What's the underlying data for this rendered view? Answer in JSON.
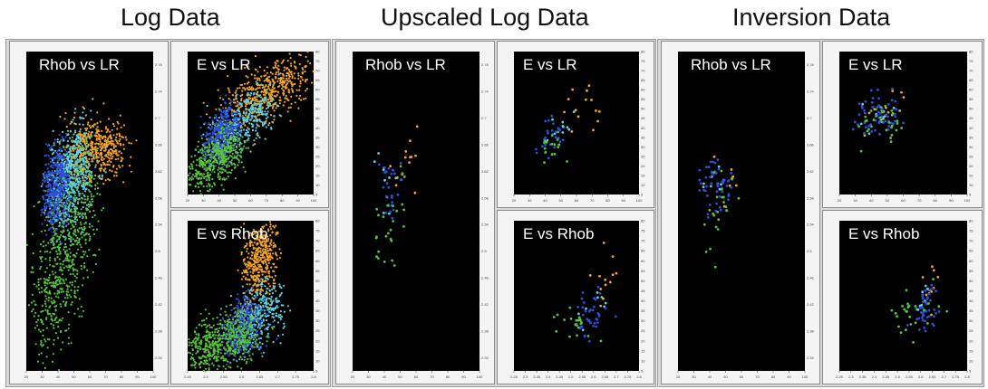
{
  "sections": [
    {
      "title": "Log Data"
    },
    {
      "title": "Upscaled Log Data"
    },
    {
      "title": "Inversion Data"
    }
  ],
  "palette": {
    "plot_bg": "#000000",
    "orange": "#f5a623",
    "cyan": "#5fd3e6",
    "blue": "#2f4fd6",
    "green": "#58c43a",
    "panel_frame": "#f4f4f4"
  },
  "chart_data": [
    {
      "id": "log-rhob-lr",
      "type": "scatter",
      "label": "Rhob vs LR",
      "xlim": [
        20,
        100
      ],
      "ylim": [
        2.32,
        2.8
      ],
      "xticks": [
        20,
        30,
        40,
        50,
        60,
        70,
        80,
        90,
        100
      ],
      "yticks": [
        2.34,
        2.38,
        2.42,
        2.46,
        2.5,
        2.54,
        2.58,
        2.62,
        2.66,
        2.7,
        2.74,
        2.78
      ],
      "series": [
        {
          "color": "orange",
          "n": 500,
          "x": [
            48,
            78
          ],
          "y": [
            2.62,
            2.68
          ],
          "spread": [
            5,
            0.02
          ],
          "corr": 0.2
        },
        {
          "color": "cyan",
          "n": 650,
          "x": [
            38,
            58
          ],
          "y": [
            2.55,
            2.67
          ],
          "spread": [
            4,
            0.025
          ],
          "corr": 0.4
        },
        {
          "color": "blue",
          "n": 450,
          "x": [
            32,
            45
          ],
          "y": [
            2.55,
            2.64
          ],
          "spread": [
            2.5,
            0.025
          ],
          "corr": 0.3
        },
        {
          "color": "green",
          "n": 650,
          "x": [
            28,
            60
          ],
          "y": [
            2.36,
            2.62
          ],
          "spread": [
            5,
            0.05
          ],
          "corr": 0.7
        }
      ]
    },
    {
      "id": "log-e-lr",
      "type": "scatter",
      "label": "E vs LR",
      "xlim": [
        20,
        100
      ],
      "ylim": [
        5,
        80
      ],
      "xticks": [
        20,
        30,
        40,
        50,
        60,
        70,
        80,
        90,
        100
      ],
      "yticks": [
        5,
        10,
        15,
        20,
        25,
        30,
        35,
        40,
        45,
        50,
        55,
        60,
        65,
        70,
        75,
        80
      ],
      "series": [
        {
          "color": "orange",
          "n": 500,
          "x": [
            50,
            90
          ],
          "y": [
            45,
            72
          ],
          "spread": [
            8,
            6
          ],
          "corr": 0.8
        },
        {
          "color": "cyan",
          "n": 400,
          "x": [
            38,
            70
          ],
          "y": [
            30,
            55
          ],
          "spread": [
            5,
            6
          ],
          "corr": 0.7
        },
        {
          "color": "blue",
          "n": 400,
          "x": [
            33,
            50
          ],
          "y": [
            25,
            48
          ],
          "spread": [
            3,
            6
          ],
          "corr": 0.6
        },
        {
          "color": "green",
          "n": 450,
          "x": [
            25,
            50
          ],
          "y": [
            12,
            35
          ],
          "spread": [
            5,
            6
          ],
          "corr": 0.7
        }
      ]
    },
    {
      "id": "log-e-rhob",
      "type": "scatter",
      "label": "E vs Rhob",
      "xlim": [
        2.45,
        2.8
      ],
      "ylim": [
        5,
        80
      ],
      "xticks": [
        2.45,
        2.5,
        2.55,
        2.6,
        2.65,
        2.7,
        2.75,
        2.8
      ],
      "yticks": [
        5,
        10,
        15,
        20,
        25,
        30,
        35,
        40,
        45,
        50,
        55,
        60,
        65,
        70,
        75,
        80
      ],
      "series": [
        {
          "color": "orange",
          "n": 450,
          "x": [
            2.62,
            2.68
          ],
          "y": [
            45,
            78
          ],
          "spread": [
            0.015,
            8
          ],
          "corr": 0.4
        },
        {
          "color": "cyan",
          "n": 350,
          "x": [
            2.6,
            2.7
          ],
          "y": [
            20,
            45
          ],
          "spread": [
            0.02,
            6
          ],
          "corr": 0.5
        },
        {
          "color": "blue",
          "n": 350,
          "x": [
            2.56,
            2.64
          ],
          "y": [
            15,
            38
          ],
          "spread": [
            0.02,
            6
          ],
          "corr": 0.5
        },
        {
          "color": "green",
          "n": 550,
          "x": [
            2.47,
            2.62
          ],
          "y": [
            10,
            30
          ],
          "spread": [
            0.03,
            6
          ],
          "corr": 0.6
        }
      ]
    },
    {
      "id": "ups-rhob-lr",
      "type": "scatter",
      "label": "Rhob vs LR",
      "xlim": [
        20,
        100
      ],
      "ylim": [
        2.32,
        2.8
      ],
      "xticks": [
        20,
        30,
        40,
        50,
        60,
        70,
        80,
        90,
        100
      ],
      "yticks": [
        2.34,
        2.38,
        2.42,
        2.46,
        2.5,
        2.54,
        2.58,
        2.62,
        2.66,
        2.7,
        2.74,
        2.78
      ],
      "series": [
        {
          "color": "orange",
          "n": 14,
          "x": [
            45,
            60
          ],
          "y": [
            2.6,
            2.66
          ],
          "spread": [
            4,
            0.02
          ],
          "corr": 0.3
        },
        {
          "color": "cyan",
          "n": 10,
          "x": [
            40,
            50
          ],
          "y": [
            2.58,
            2.64
          ],
          "spread": [
            3,
            0.02
          ],
          "corr": 0.3
        },
        {
          "color": "blue",
          "n": 28,
          "x": [
            38,
            48
          ],
          "y": [
            2.55,
            2.63
          ],
          "spread": [
            3,
            0.02
          ],
          "corr": 0.3
        },
        {
          "color": "green",
          "n": 26,
          "x": [
            38,
            50
          ],
          "y": [
            2.48,
            2.62
          ],
          "spread": [
            4,
            0.03
          ],
          "corr": 0.5
        }
      ]
    },
    {
      "id": "ups-e-lr",
      "type": "scatter",
      "label": "E vs LR",
      "xlim": [
        20,
        100
      ],
      "ylim": [
        5,
        80
      ],
      "xticks": [
        20,
        30,
        40,
        50,
        60,
        70,
        80,
        90,
        100
      ],
      "yticks": [
        5,
        10,
        15,
        20,
        25,
        30,
        35,
        40,
        45,
        50,
        55,
        60,
        65,
        70,
        75,
        80
      ],
      "series": [
        {
          "color": "orange",
          "n": 14,
          "x": [
            48,
            70
          ],
          "y": [
            40,
            60
          ],
          "spread": [
            5,
            6
          ],
          "corr": 0.6
        },
        {
          "color": "cyan",
          "n": 10,
          "x": [
            42,
            52
          ],
          "y": [
            33,
            45
          ],
          "spread": [
            3,
            4
          ],
          "corr": 0.5
        },
        {
          "color": "blue",
          "n": 28,
          "x": [
            38,
            48
          ],
          "y": [
            28,
            40
          ],
          "spread": [
            3,
            4
          ],
          "corr": 0.5
        },
        {
          "color": "green",
          "n": 16,
          "x": [
            40,
            52
          ],
          "y": [
            24,
            36
          ],
          "spread": [
            3,
            4
          ],
          "corr": 0.5
        }
      ]
    },
    {
      "id": "ups-e-rhob",
      "type": "scatter",
      "label": "E vs Rhob",
      "xlim": [
        2.25,
        2.8
      ],
      "ylim": [
        5,
        80
      ],
      "xticks": [
        2.25,
        2.3,
        2.35,
        2.4,
        2.45,
        2.5,
        2.55,
        2.6,
        2.65,
        2.7,
        2.75,
        2.8
      ],
      "yticks": [
        5,
        10,
        15,
        20,
        25,
        30,
        35,
        40,
        45,
        50,
        55,
        60,
        65,
        70,
        75,
        80
      ],
      "series": [
        {
          "color": "orange",
          "n": 12,
          "x": [
            2.6,
            2.68
          ],
          "y": [
            38,
            58
          ],
          "spread": [
            0.03,
            6
          ],
          "corr": 0.5
        },
        {
          "color": "cyan",
          "n": 8,
          "x": [
            2.55,
            2.65
          ],
          "y": [
            30,
            42
          ],
          "spread": [
            0.03,
            5
          ],
          "corr": 0.4
        },
        {
          "color": "blue",
          "n": 40,
          "x": [
            2.55,
            2.65
          ],
          "y": [
            25,
            40
          ],
          "spread": [
            0.03,
            5
          ],
          "corr": 0.4
        },
        {
          "color": "green",
          "n": 20,
          "x": [
            2.45,
            2.6
          ],
          "y": [
            24,
            36
          ],
          "spread": [
            0.04,
            5
          ],
          "corr": 0.5
        }
      ]
    },
    {
      "id": "inv-rhob-lr",
      "type": "scatter",
      "label": "Rhob vs LR",
      "xlim": [
        20,
        100
      ],
      "ylim": [
        2.32,
        2.8
      ],
      "xticks": [
        20,
        30,
        40,
        50,
        60,
        70,
        80,
        90,
        100
      ],
      "yticks": [
        2.34,
        2.38,
        2.42,
        2.46,
        2.5,
        2.54,
        2.58,
        2.62,
        2.66,
        2.7,
        2.74,
        2.78
      ],
      "series": [
        {
          "color": "orange",
          "n": 8,
          "x": [
            45,
            55
          ],
          "y": [
            2.58,
            2.64
          ],
          "spread": [
            3,
            0.02
          ],
          "corr": 0.3
        },
        {
          "color": "cyan",
          "n": 8,
          "x": [
            40,
            50
          ],
          "y": [
            2.58,
            2.63
          ],
          "spread": [
            3,
            0.02
          ],
          "corr": 0.3
        },
        {
          "color": "blue",
          "n": 50,
          "x": [
            36,
            50
          ],
          "y": [
            2.57,
            2.63
          ],
          "spread": [
            4,
            0.02
          ],
          "corr": 0.3
        },
        {
          "color": "green",
          "n": 22,
          "x": [
            38,
            52
          ],
          "y": [
            2.5,
            2.62
          ],
          "spread": [
            4,
            0.03
          ],
          "corr": 0.4
        }
      ]
    },
    {
      "id": "inv-e-lr",
      "type": "scatter",
      "label": "E vs LR",
      "xlim": [
        20,
        100
      ],
      "ylim": [
        5,
        80
      ],
      "xticks": [
        20,
        30,
        40,
        50,
        60,
        70,
        80,
        90,
        100
      ],
      "yticks": [
        5,
        10,
        15,
        20,
        25,
        30,
        35,
        40,
        45,
        50,
        55,
        60,
        65,
        70,
        75,
        80
      ],
      "series": [
        {
          "color": "orange",
          "n": 12,
          "x": [
            42,
            58
          ],
          "y": [
            42,
            56
          ],
          "spread": [
            5,
            5
          ],
          "corr": 0.4
        },
        {
          "color": "cyan",
          "n": 10,
          "x": [
            38,
            52
          ],
          "y": [
            40,
            52
          ],
          "spread": [
            4,
            5
          ],
          "corr": 0.4
        },
        {
          "color": "blue",
          "n": 60,
          "x": [
            34,
            52
          ],
          "y": [
            38,
            54
          ],
          "spread": [
            5,
            5
          ],
          "corr": 0.4
        },
        {
          "color": "green",
          "n": 30,
          "x": [
            36,
            55
          ],
          "y": [
            36,
            54
          ],
          "spread": [
            5,
            5
          ],
          "corr": 0.4
        }
      ]
    },
    {
      "id": "inv-e-rhob",
      "type": "scatter",
      "label": "E vs Rhob",
      "xlim": [
        2.25,
        2.8
      ],
      "ylim": [
        5,
        80
      ],
      "xticks": [
        2.25,
        2.3,
        2.35,
        2.4,
        2.45,
        2.5,
        2.55,
        2.6,
        2.65,
        2.7,
        2.75,
        2.8
      ],
      "yticks": [
        5,
        10,
        15,
        20,
        25,
        30,
        35,
        40,
        45,
        50,
        55,
        60,
        65,
        70,
        75,
        80
      ],
      "series": [
        {
          "color": "orange",
          "n": 10,
          "x": [
            2.6,
            2.66
          ],
          "y": [
            38,
            55
          ],
          "spread": [
            0.02,
            6
          ],
          "corr": 0.4
        },
        {
          "color": "cyan",
          "n": 10,
          "x": [
            2.58,
            2.65
          ],
          "y": [
            32,
            45
          ],
          "spread": [
            0.02,
            5
          ],
          "corr": 0.4
        },
        {
          "color": "blue",
          "n": 45,
          "x": [
            2.58,
            2.66
          ],
          "y": [
            28,
            42
          ],
          "spread": [
            0.02,
            5
          ],
          "corr": 0.4
        },
        {
          "color": "green",
          "n": 25,
          "x": [
            2.5,
            2.64
          ],
          "y": [
            26,
            40
          ],
          "spread": [
            0.03,
            5
          ],
          "corr": 0.4
        }
      ]
    }
  ]
}
